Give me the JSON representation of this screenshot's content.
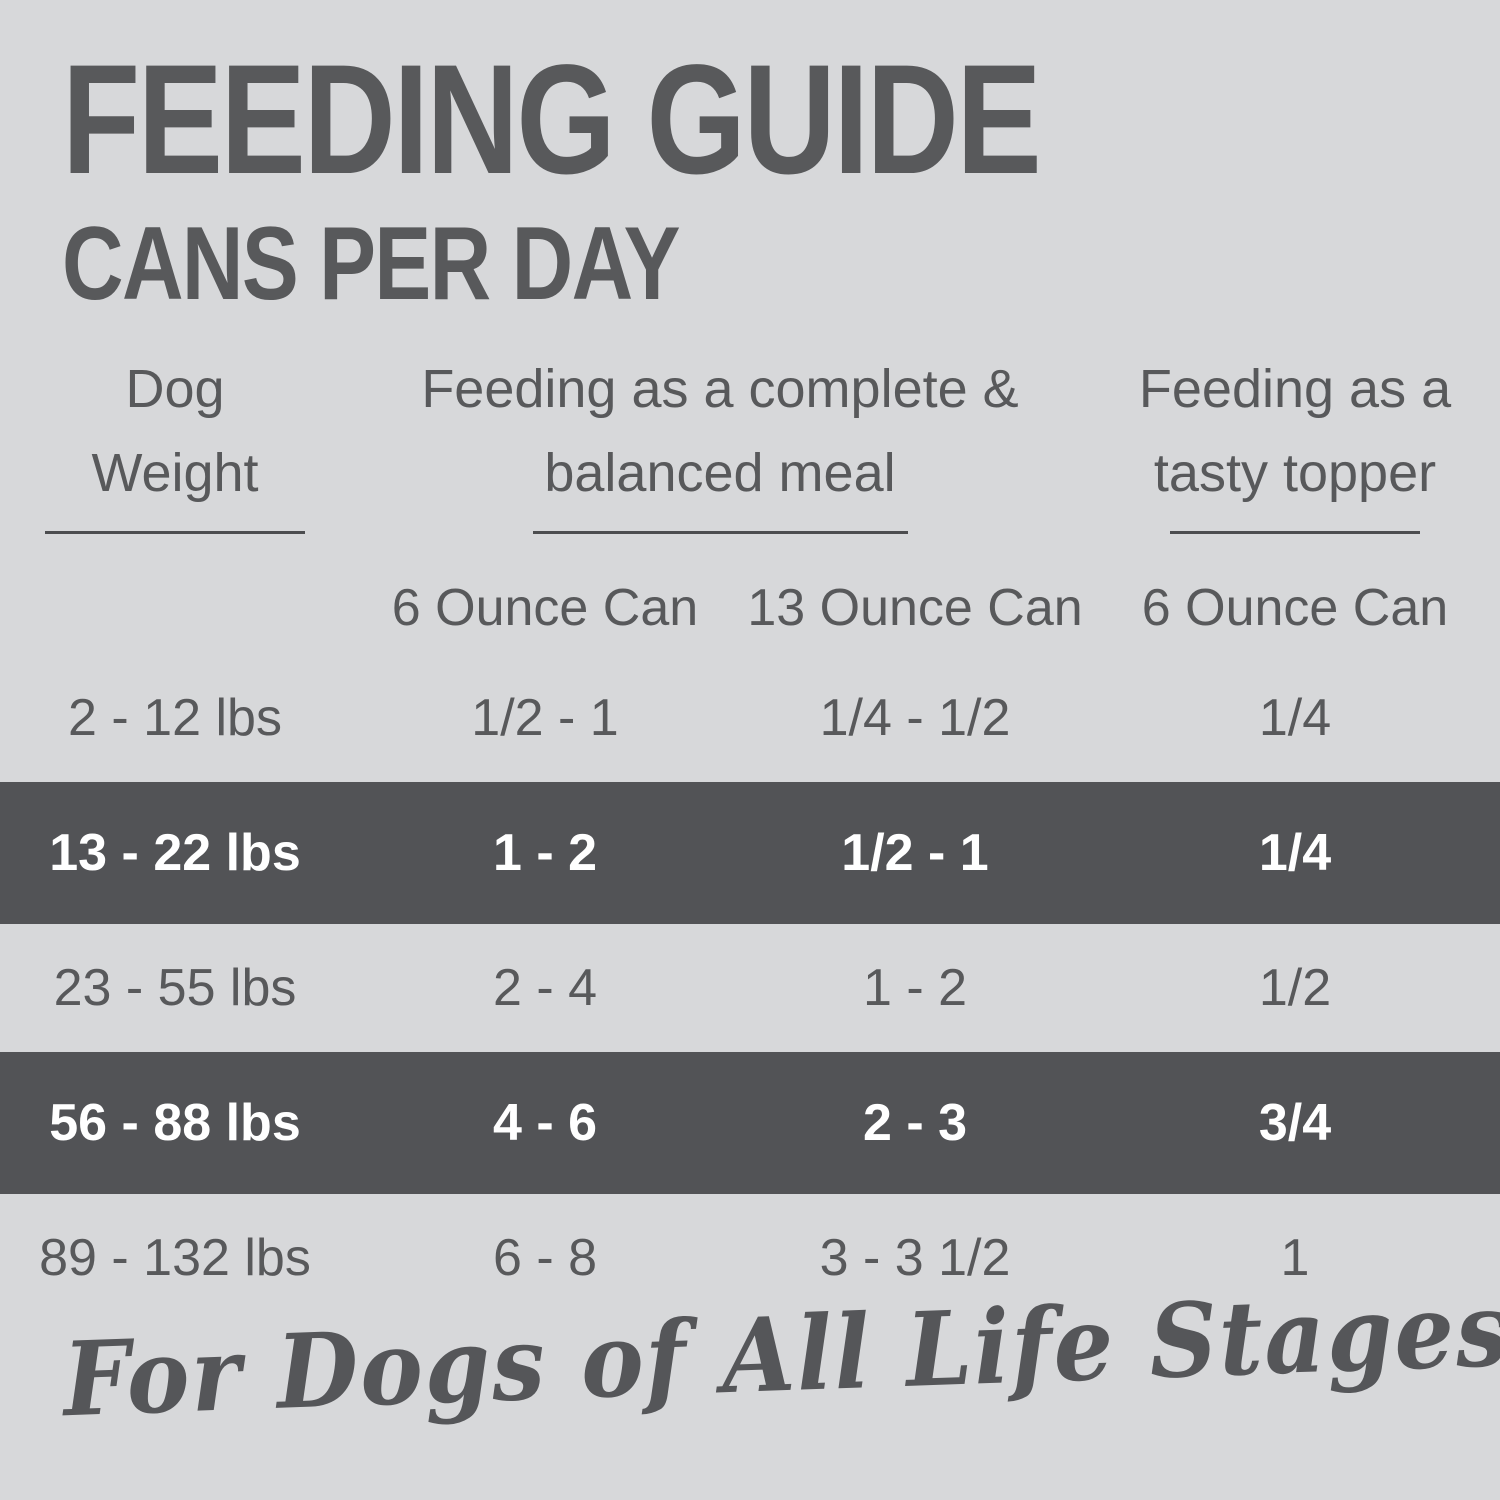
{
  "colors": {
    "background": "#d7d8da",
    "text": "#58595b",
    "highlight_band": "#525356",
    "highlight_text": "#ffffff"
  },
  "header": {
    "title": "FEEDING GUIDE",
    "subtitle": "CANS PER DAY"
  },
  "table": {
    "column_groups": [
      {
        "label": "Dog\nWeight"
      },
      {
        "label": "Feeding as a complete &\nbalanced meal"
      },
      {
        "label": "Feeding as a\ntasty topper"
      }
    ],
    "subheaders": [
      "6 Ounce Can",
      "13 Ounce Can",
      "6 Ounce Can"
    ]
  },
  "footer": {
    "tagline": "For Dogs of All Life Stages"
  },
  "chart_data": {
    "type": "table",
    "title": "FEEDING GUIDE",
    "subtitle": "CANS PER DAY",
    "column_groups": [
      {
        "label": "Dog Weight",
        "span": 1
      },
      {
        "label": "Feeding as a complete & balanced meal",
        "span": 2
      },
      {
        "label": "Feeding as a tasty topper",
        "span": 1
      }
    ],
    "columns": [
      "Dog Weight",
      "6 Ounce Can",
      "13 Ounce Can",
      "6 Ounce Can"
    ],
    "rows": [
      [
        "2 - 12 lbs",
        "1/2 - 1",
        "1/4 - 1/2",
        "1/4"
      ],
      [
        "13 - 22 lbs",
        "1 - 2",
        "1/2 - 1",
        "1/4"
      ],
      [
        "23 - 55 lbs",
        "2 - 4",
        "1 - 2",
        "1/2"
      ],
      [
        "56 - 88 lbs",
        "4 - 6",
        "2 - 3",
        "3/4"
      ],
      [
        "89 - 132 lbs",
        "6 - 8",
        "3 - 3 1/2",
        "1"
      ]
    ],
    "highlighted_rows": [
      1,
      3
    ],
    "footnote": "For Dogs of All Life Stages"
  }
}
